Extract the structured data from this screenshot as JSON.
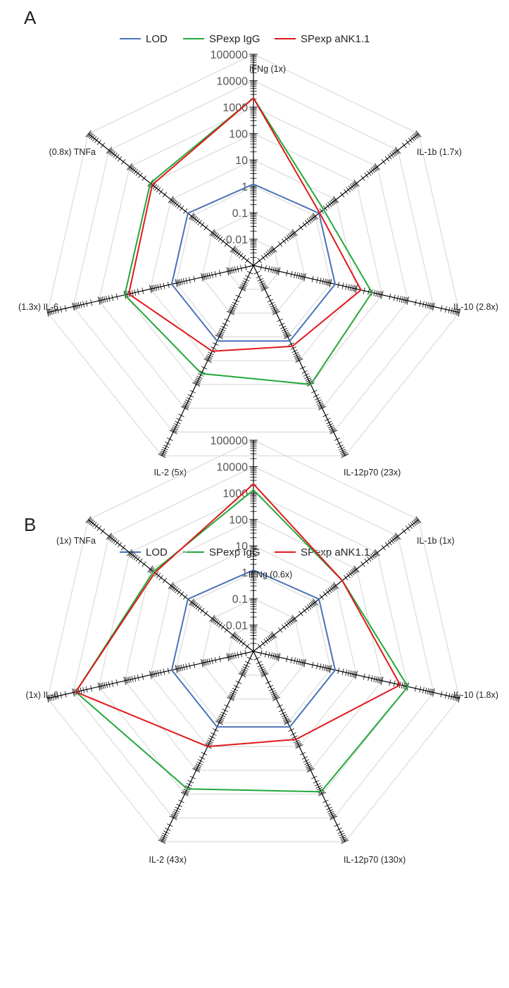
{
  "legend": [
    "LOD",
    "SPexp IgG",
    "SPexp aNK1.1"
  ],
  "colors": {
    "LOD": "#4a72b8",
    "SPexp IgG": "#22a83a",
    "SPexp aNK1.1": "#e0191c",
    "grid": "#d4d4d4",
    "axis": "#000000"
  },
  "chart_data": [
    {
      "type": "radar",
      "panel": "A",
      "scale": "log",
      "rlim": [
        0.001,
        100000
      ],
      "tick_labels": [
        "0.01",
        "0.1",
        "1",
        "10",
        "100",
        "1000",
        "10000",
        "100000"
      ],
      "axes": [
        "IFNg (1x)",
        "IL-1b (1.7x)",
        "IL-10 (2.8x)",
        "IL-12p70 (23x)",
        "IL-2 (5x)",
        "(1.3x) IL-6",
        "(0.8x) TNFa"
      ],
      "legend_position": "top",
      "grid": true,
      "series": [
        {
          "name": "LOD",
          "values": [
            1.2,
            1.5,
            1.5,
            1.5,
            1.5,
            1.5,
            1.5
          ]
        },
        {
          "name": "SPexp IgG",
          "values": [
            2200,
            2.5,
            40,
            100,
            35,
            100,
            100
          ]
        },
        {
          "name": "SPexp aNK1.1",
          "values": [
            2200,
            1.6,
            15,
            2.5,
            4,
            70,
            80
          ]
        }
      ]
    },
    {
      "type": "radar",
      "panel": "B",
      "scale": "log",
      "rlim": [
        0.001,
        100000
      ],
      "tick_labels": [
        "0.01",
        "0.1",
        "1",
        "10",
        "100",
        "1000",
        "10000",
        "100000"
      ],
      "axes": [
        "IFNg (0.6x)",
        "IL-1b (1x)",
        "IL-10 (1.8x)",
        "IL-12p70 (130x)",
        "IL-2 (43x)",
        "(1x) IL-6",
        "(1x) TNFa"
      ],
      "legend_position": "top",
      "grid": true,
      "series": [
        {
          "name": "LOD",
          "values": [
            1.2,
            1.5,
            1.5,
            1.5,
            1.5,
            1.5,
            1.5
          ]
        },
        {
          "name": "SPexp IgG",
          "values": [
            1300,
            20,
            1000,
            800,
            600,
            8000,
            70
          ]
        },
        {
          "name": "SPexp aNK1.1",
          "values": [
            2200,
            20,
            500,
            5,
            10,
            8000,
            60
          ]
        }
      ]
    }
  ]
}
